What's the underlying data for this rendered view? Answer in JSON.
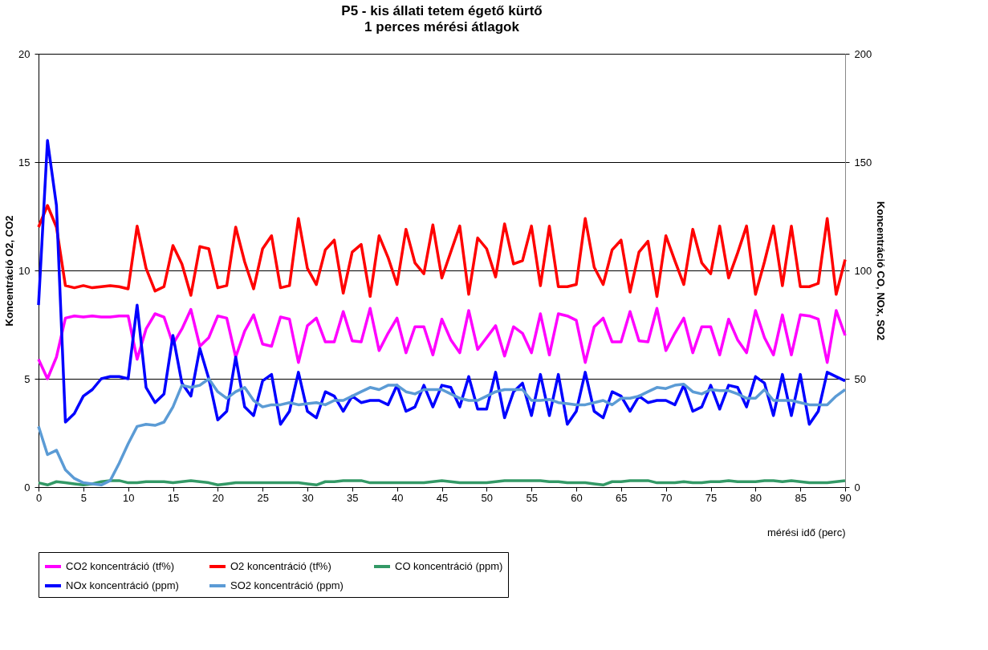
{
  "chart_data": {
    "type": "line",
    "title": "P5 - kis állati tetem égető kürtő",
    "subtitle": "1 perces mérési átlagok",
    "xlabel": "mérési idő (perc)",
    "ylabel": "Koncentráció O2, CO2",
    "y2label": "Koncentráció CO, NOx, SO2",
    "x": [
      0,
      1,
      2,
      3,
      4,
      5,
      6,
      7,
      8,
      9,
      10,
      11,
      12,
      13,
      14,
      15,
      16,
      17,
      18,
      19,
      20,
      21,
      22,
      23,
      24,
      25,
      26,
      27,
      28,
      29,
      30,
      31,
      32,
      33,
      34,
      35,
      36,
      37,
      38,
      39,
      40,
      41,
      42,
      43,
      44,
      45,
      46,
      47,
      48,
      49,
      50,
      51,
      52,
      53,
      54,
      55,
      56,
      57,
      58,
      59,
      60,
      61,
      62,
      63,
      64,
      65,
      66,
      67,
      68,
      69,
      70,
      71,
      72,
      73,
      74,
      75,
      76,
      77,
      78,
      79,
      80,
      81,
      82,
      83,
      84,
      85,
      86,
      87,
      88,
      89,
      90
    ],
    "xlim": [
      0,
      90
    ],
    "xticks": [
      0,
      5,
      10,
      15,
      20,
      25,
      30,
      35,
      40,
      45,
      50,
      55,
      60,
      65,
      70,
      75,
      80,
      85,
      90
    ],
    "ylim": [
      0,
      20
    ],
    "yticks": [
      0,
      5,
      10,
      15,
      20
    ],
    "y2lim": [
      0,
      200
    ],
    "y2ticks": [
      0,
      50,
      100,
      150,
      200
    ],
    "grid": "y",
    "legend": "bottom",
    "marker": "none",
    "line_style": "solid",
    "series": [
      {
        "name": "CO2 koncentráció (tf%)",
        "color": "#ff00ff",
        "values": [
          5.9,
          5.0,
          6.0,
          7.8,
          7.9,
          7.85,
          7.9,
          7.85,
          7.85,
          7.9,
          7.9,
          5.9,
          7.3,
          8.0,
          7.85,
          6.6,
          7.3,
          8.2,
          6.5,
          6.9,
          7.9,
          7.8,
          6.0,
          7.2,
          7.95,
          6.6,
          6.5,
          7.85,
          7.75,
          5.75,
          7.45,
          7.8,
          6.7,
          6.7,
          8.1,
          6.75,
          6.7,
          8.25,
          6.3,
          7.1,
          7.8,
          6.2,
          7.4,
          7.4,
          6.1,
          7.75,
          6.8,
          6.2,
          8.15,
          6.35,
          6.9,
          7.45,
          6.05,
          7.4,
          7.1,
          6.2,
          8.0,
          6.1,
          8.0,
          7.9,
          7.7,
          5.75,
          7.4,
          7.8,
          6.7,
          6.7,
          8.1,
          6.75,
          6.7,
          8.25,
          6.3,
          7.1,
          7.8,
          6.2,
          7.4,
          7.4,
          6.1,
          7.75,
          6.8,
          6.2,
          8.15,
          6.9,
          6.1,
          7.95,
          6.1,
          7.95,
          7.9,
          7.75,
          5.75,
          8.15,
          7.0
        ]
      },
      {
        "name": "O2 koncentráció (tf%)",
        "color": "#ff0000",
        "values": [
          12.0,
          13.0,
          12.0,
          9.3,
          9.2,
          9.3,
          9.2,
          9.25,
          9.3,
          9.25,
          9.15,
          12.05,
          10.1,
          9.05,
          9.25,
          11.15,
          10.3,
          8.85,
          11.1,
          11.0,
          9.2,
          9.3,
          12.0,
          10.4,
          9.15,
          11.0,
          11.6,
          9.2,
          9.3,
          12.4,
          10.1,
          9.35,
          10.95,
          11.4,
          8.95,
          10.85,
          11.2,
          8.8,
          11.6,
          10.6,
          9.35,
          11.9,
          10.35,
          9.85,
          12.1,
          9.65,
          10.85,
          12.05,
          8.9,
          11.5,
          11.0,
          9.7,
          12.15,
          10.3,
          10.45,
          12.05,
          9.3,
          12.05,
          9.25,
          9.25,
          9.35,
          12.4,
          10.15,
          9.35,
          10.95,
          11.4,
          9.0,
          10.85,
          11.35,
          8.8,
          11.6,
          10.45,
          9.35,
          11.9,
          10.35,
          9.85,
          12.05,
          9.65,
          10.8,
          12.05,
          8.9,
          10.4,
          12.05,
          9.3,
          12.05,
          9.25,
          9.25,
          9.4,
          12.4,
          8.9,
          10.5
        ]
      },
      {
        "name": "CO koncentráció (ppm)",
        "color": "#339966",
        "axis": "y2",
        "values": [
          2,
          1,
          2.5,
          2,
          1.5,
          1,
          1.5,
          2.5,
          3,
          3,
          2,
          2,
          2.5,
          2.5,
          2.5,
          2,
          2.5,
          3,
          2.5,
          2,
          1,
          1.5,
          2,
          2,
          2,
          2,
          2,
          2,
          2,
          2,
          1.5,
          1,
          2.5,
          2.5,
          3,
          3,
          3,
          2,
          2,
          2,
          2,
          2,
          2,
          2,
          2.5,
          3,
          2.5,
          2,
          2,
          2,
          2,
          2.5,
          3,
          3,
          3,
          3,
          3,
          2.5,
          2.5,
          2,
          2,
          2,
          1.5,
          1,
          2.5,
          2.5,
          3,
          3,
          3,
          2,
          2,
          2,
          2.5,
          2,
          2,
          2.5,
          2.5,
          3,
          2.5,
          2.5,
          2.5,
          3,
          3,
          2.5,
          3,
          2.5,
          2,
          2,
          2,
          2.5,
          3
        ]
      },
      {
        "name": "NOx koncentráció (ppm)",
        "color": "#0000ff",
        "axis": "y2",
        "values": [
          84,
          160,
          130,
          30,
          34,
          42,
          45,
          50,
          51,
          51,
          50,
          84,
          46,
          39,
          43,
          70,
          48,
          42,
          64,
          50,
          31,
          35,
          60,
          37,
          33,
          49,
          52,
          29,
          35,
          53,
          35,
          32,
          44,
          42,
          35,
          42,
          39,
          40,
          40,
          38,
          47,
          35,
          37,
          47,
          37,
          47,
          46,
          37,
          51,
          36,
          36,
          53,
          32,
          44,
          48,
          33,
          52,
          33,
          52,
          29,
          35,
          53,
          35,
          32,
          44,
          42,
          35,
          42,
          39,
          40,
          40,
          38,
          47,
          35,
          37,
          47,
          36,
          47,
          46,
          37,
          51,
          48,
          33,
          52,
          33,
          52,
          29,
          35,
          53,
          51,
          49
        ]
      },
      {
        "name": "SO2 koncentráció (ppm)",
        "color": "#5b9bd5",
        "axis": "y2",
        "values": [
          28,
          15,
          17,
          8,
          4,
          2,
          1.5,
          1,
          3,
          11,
          20,
          28,
          29,
          28.5,
          30,
          37,
          47,
          46,
          47,
          50,
          44,
          41,
          44,
          46,
          40,
          37,
          38,
          38,
          39,
          38,
          38.5,
          39,
          38,
          40,
          40,
          42,
          44,
          46,
          45,
          47,
          47,
          44,
          43,
          45,
          45,
          45,
          43,
          41,
          40,
          40,
          42,
          44,
          45,
          45,
          45,
          40,
          40,
          40.5,
          39,
          38.5,
          38,
          38,
          39,
          40,
          38,
          41,
          41,
          42,
          44,
          46,
          45.5,
          47,
          47.5,
          44,
          43,
          45,
          44.5,
          44.5,
          43,
          41,
          41,
          45,
          40,
          40,
          40,
          39,
          38,
          38,
          38,
          42,
          45
        ]
      }
    ]
  }
}
